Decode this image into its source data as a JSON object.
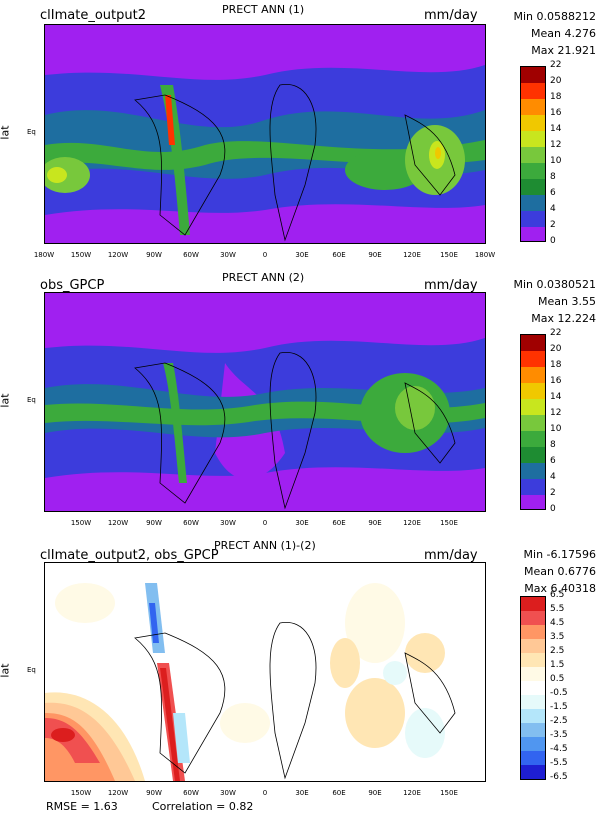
{
  "colors": {
    "precip": [
      "#a020f0",
      "#3c3cdc",
      "#1e6ea0",
      "#1e8c32",
      "#3caa3c",
      "#78c83c",
      "#c8e61e",
      "#f0c800",
      "#ff8c00",
      "#ff3200",
      "#a00000"
    ],
    "diff": [
      "#1e1ed2",
      "#3264f0",
      "#5096f0",
      "#82bef0",
      "#b4e6fa",
      "#e6fafa",
      "#ffffff",
      "#fffae6",
      "#ffe6b4",
      "#ffc896",
      "#ff9664",
      "#f05050",
      "#dc1e1e"
    ]
  },
  "panels": [
    {
      "run": "clImate_output2",
      "title": "PRECT ANN (1)",
      "units": "mm/day",
      "stats": [
        "Min 0.0588212",
        "Mean 4.276",
        "Max 21.921"
      ],
      "ylabel": "lat",
      "eq": "Eq",
      "xticks": [
        "180W",
        "150W",
        "120W",
        "90W",
        "60W",
        "30W",
        "0",
        "30E",
        "60E",
        "90E",
        "120E",
        "150E",
        "180W"
      ],
      "colorbar": [
        "22",
        "20",
        "18",
        "16",
        "14",
        "12",
        "10",
        "8",
        "6",
        "4",
        "2",
        "0"
      ]
    },
    {
      "run": "obs_GPCP",
      "title": "PRECT ANN (2)",
      "units": "mm/day",
      "stats": [
        "Min 0.0380521",
        "Mean 3.55",
        "Max 12.224"
      ],
      "ylabel": "lat",
      "eq": "Eq",
      "xticks": [
        "150W",
        "120W",
        "90W",
        "60W",
        "30W",
        "0",
        "30E",
        "60E",
        "90E",
        "120E",
        "150E"
      ],
      "colorbar": [
        "22",
        "20",
        "18",
        "16",
        "14",
        "12",
        "10",
        "8",
        "6",
        "4",
        "2",
        "0"
      ]
    },
    {
      "run": "clImate_output2, obs_GPCP",
      "title": "PRECT ANN (1)-(2)",
      "units": "mm/day",
      "stats": [
        "Min -6.17596",
        "Mean 0.6776",
        "Max 6.40318"
      ],
      "ylabel": "lat",
      "eq": "Eq",
      "xticks": [
        "150W",
        "120W",
        "90W",
        "60W",
        "30W",
        "0",
        "30E",
        "60E",
        "90E",
        "120E",
        "150E"
      ],
      "colorbar": [
        "6.5",
        "5.5",
        "4.5",
        "3.5",
        "2.5",
        "1.5",
        "0.5",
        "-0.5",
        "-1.5",
        "-2.5",
        "-3.5",
        "-4.5",
        "-5.5",
        "-6.5"
      ]
    }
  ],
  "footer": {
    "rmse": "RMSE = 1.63",
    "correlation": "Correlation = 0.82"
  },
  "chart_data": [
    {
      "type": "heatmap",
      "title": "PRECT ANN (1)",
      "ylabel": "lat",
      "units": "mm/day",
      "x_tick_labels": [
        "180W",
        "150W",
        "120W",
        "90W",
        "60W",
        "30W",
        "0",
        "30E",
        "60E",
        "90E",
        "120E",
        "150E",
        "180W"
      ],
      "y_tick_labels": [
        "Eq"
      ],
      "colorbar_levels": [
        0,
        2,
        4,
        6,
        8,
        10,
        12,
        14,
        16,
        18,
        20,
        22
      ],
      "stats": {
        "min": 0.0588212,
        "mean": 4.276,
        "max": 21.921
      }
    },
    {
      "type": "heatmap",
      "title": "PRECT ANN (2)",
      "ylabel": "lat",
      "units": "mm/day",
      "x_tick_labels": [
        "150W",
        "120W",
        "90W",
        "60W",
        "30W",
        "0",
        "30E",
        "60E",
        "90E",
        "120E",
        "150E"
      ],
      "y_tick_labels": [
        "Eq"
      ],
      "colorbar_levels": [
        0,
        2,
        4,
        6,
        8,
        10,
        12,
        14,
        16,
        18,
        20,
        22
      ],
      "stats": {
        "min": 0.0380521,
        "mean": 3.55,
        "max": 12.224
      }
    },
    {
      "type": "heatmap",
      "title": "PRECT ANN (1)-(2)",
      "ylabel": "lat",
      "units": "mm/day",
      "x_tick_labels": [
        "150W",
        "120W",
        "90W",
        "60W",
        "30W",
        "0",
        "30E",
        "60E",
        "90E",
        "120E",
        "150E"
      ],
      "y_tick_labels": [
        "Eq"
      ],
      "colorbar_levels": [
        -6.5,
        -5.5,
        -4.5,
        -3.5,
        -2.5,
        -1.5,
        -0.5,
        0.5,
        1.5,
        2.5,
        3.5,
        4.5,
        5.5,
        6.5
      ],
      "stats": {
        "min": -6.17596,
        "mean": 0.6776,
        "max": 6.40318,
        "rmse": 1.63,
        "correlation": 0.82
      }
    }
  ]
}
